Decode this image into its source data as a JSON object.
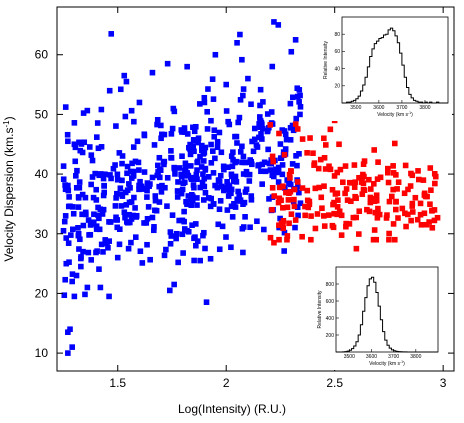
{
  "chart_data": [
    {
      "type": "scatter",
      "xlabel": "Log(Intensity) (R.U.)",
      "ylabel_main": "Velocity Dispersion (km.s",
      "ylabel_sup": "-1",
      "ylabel_close": ")",
      "xlim": [
        1.22,
        3.05
      ],
      "ylim": [
        7,
        68
      ],
      "x_ticks": [
        1.5,
        2,
        2.5,
        3
      ],
      "x_tick_labels": [
        "1.5",
        "2",
        "2.5",
        "3"
      ],
      "y_ticks": [
        10,
        20,
        30,
        40,
        50,
        60
      ],
      "y_tick_labels": [
        "10",
        "20",
        "30",
        "40",
        "50",
        "60"
      ],
      "grid": false,
      "series": [
        {
          "color": "#0000ff",
          "marker": "square",
          "generated": {
            "count": 560,
            "x_range": [
              1.25,
              2.35
            ],
            "y_mean_at_low_x": 36,
            "y_mean_at_high_x": 42,
            "y_spread": 6.5,
            "y_range": [
              10,
              66
            ],
            "seed": 7
          },
          "points": [
            [
              1.27,
              10
            ],
            [
              1.29,
              11
            ],
            [
              1.27,
              13.5
            ],
            [
              1.28,
              14
            ],
            [
              1.3,
              19.5
            ],
            [
              1.29,
              22
            ],
            [
              1.31,
              23
            ],
            [
              1.33,
              24.5
            ],
            [
              1.34,
              27
            ],
            [
              1.36,
              21
            ],
            [
              1.42,
              21
            ],
            [
              1.46,
              19.5
            ],
            [
              1.47,
              63.5
            ],
            [
              1.53,
              56.5
            ],
            [
              1.54,
              55.5
            ],
            [
              1.66,
              57
            ],
            [
              1.73,
              58.5
            ],
            [
              1.82,
              58
            ],
            [
              1.95,
              60
            ],
            [
              2.05,
              62
            ],
            [
              2.22,
              65.5
            ],
            [
              2.24,
              65
            ],
            [
              2.3,
              60.5
            ],
            [
              2.32,
              62.5
            ],
            [
              1.27,
              45.5
            ],
            [
              1.3,
              45
            ],
            [
              1.76,
              21.5
            ],
            [
              1.74,
              20.5
            ],
            [
              1.86,
              28
            ],
            [
              1.88,
              25.5
            ],
            [
              2.0,
              55
            ],
            [
              2.1,
              56
            ],
            [
              1.6,
              52
            ],
            [
              1.55,
              27.5
            ],
            [
              1.5,
              26
            ],
            [
              1.32,
              30
            ],
            [
              1.26,
              33
            ],
            [
              1.25,
              30.5
            ],
            [
              2.34,
              50
            ],
            [
              2.33,
              53
            ]
          ]
        },
        {
          "color": "#ff0000",
          "marker": "square",
          "generated": {
            "count": 200,
            "x_range": [
              2.2,
              2.98
            ],
            "y_mean": 36,
            "y_spread_at_low_x": 5,
            "y_spread_at_high_x": 2.5,
            "y_range": [
              29,
              49
            ],
            "seed": 11
          },
          "points": [
            [
              2.5,
              49
            ],
            [
              2.48,
              47.5
            ],
            [
              2.52,
              45
            ],
            [
              2.45,
              46
            ],
            [
              2.22,
              28.5
            ],
            [
              2.28,
              29
            ],
            [
              2.35,
              29.5
            ],
            [
              2.6,
              27.5
            ],
            [
              2.75,
              29
            ],
            [
              2.9,
              31.5
            ],
            [
              2.96,
              34
            ],
            [
              2.95,
              31
            ],
            [
              2.7,
              42
            ],
            [
              2.85,
              38
            ],
            [
              2.4,
              43.5
            ]
          ]
        }
      ]
    },
    {
      "type": "line",
      "xlabel": "Velocity (km s",
      "xlabel_sup": "-1",
      "xlabel_close": ")",
      "ylabel": "Relative Intensity",
      "xlim": [
        3440,
        3900
      ],
      "ylim": [
        0,
        100
      ],
      "x_ticks": [
        3500,
        3600,
        3700,
        3800
      ],
      "x_tick_labels": [
        "3500",
        "3600",
        "3700",
        "3800"
      ],
      "y_ticks": [
        20,
        40,
        60,
        80
      ],
      "y_tick_labels": [
        "20",
        "40",
        "60",
        "80"
      ],
      "grid": false,
      "step": 10,
      "x": [
        3440,
        3450,
        3460,
        3470,
        3480,
        3490,
        3500,
        3510,
        3520,
        3530,
        3540,
        3550,
        3560,
        3570,
        3580,
        3590,
        3600,
        3610,
        3620,
        3630,
        3640,
        3650,
        3660,
        3670,
        3680,
        3690,
        3700,
        3710,
        3720,
        3730,
        3740,
        3750,
        3760,
        3770,
        3780,
        3790,
        3800,
        3810,
        3820,
        3830,
        3840,
        3850,
        3860,
        3870,
        3880,
        3890
      ],
      "values": [
        0,
        0,
        1,
        1,
        2,
        3,
        5,
        8,
        14,
        21,
        30,
        42,
        54,
        63,
        69,
        72,
        75,
        76,
        79,
        80,
        85,
        87,
        84,
        78,
        70,
        58,
        44,
        30,
        18,
        10,
        6,
        3,
        2,
        1,
        1,
        0,
        1,
        0,
        1,
        0,
        0,
        1,
        0,
        0,
        0,
        0
      ]
    },
    {
      "type": "line",
      "xlabel": "Velocity (km s",
      "xlabel_sup": "-1",
      "xlabel_close": ")",
      "ylabel": "Relative Intensity",
      "xlim": [
        3440,
        3900
      ],
      "ylim": [
        0,
        1000
      ],
      "x_ticks": [
        3500,
        3600,
        3700,
        3800
      ],
      "x_tick_labels": [
        "3500",
        "3600",
        "3700",
        "3800"
      ],
      "y_ticks": [
        200,
        400,
        600,
        800
      ],
      "y_tick_labels": [
        "200",
        "400",
        "600",
        "800"
      ],
      "grid": false,
      "step": 10,
      "x": [
        3440,
        3450,
        3460,
        3470,
        3480,
        3490,
        3500,
        3510,
        3520,
        3530,
        3540,
        3550,
        3560,
        3570,
        3580,
        3590,
        3600,
        3610,
        3620,
        3630,
        3640,
        3650,
        3660,
        3670,
        3680,
        3690,
        3700,
        3710,
        3720,
        3730,
        3740,
        3750,
        3760,
        3770,
        3780,
        3790,
        3800,
        3810,
        3820,
        3830,
        3840,
        3850,
        3860,
        3870,
        3880,
        3890
      ],
      "values": [
        0,
        0,
        0,
        2,
        5,
        10,
        20,
        40,
        70,
        120,
        200,
        320,
        480,
        640,
        780,
        860,
        880,
        820,
        700,
        540,
        380,
        240,
        140,
        80,
        45,
        25,
        15,
        8,
        5,
        3,
        2,
        1,
        0,
        0,
        0,
        0,
        0,
        0,
        0,
        0,
        0,
        0,
        0,
        0,
        0,
        0
      ]
    }
  ]
}
